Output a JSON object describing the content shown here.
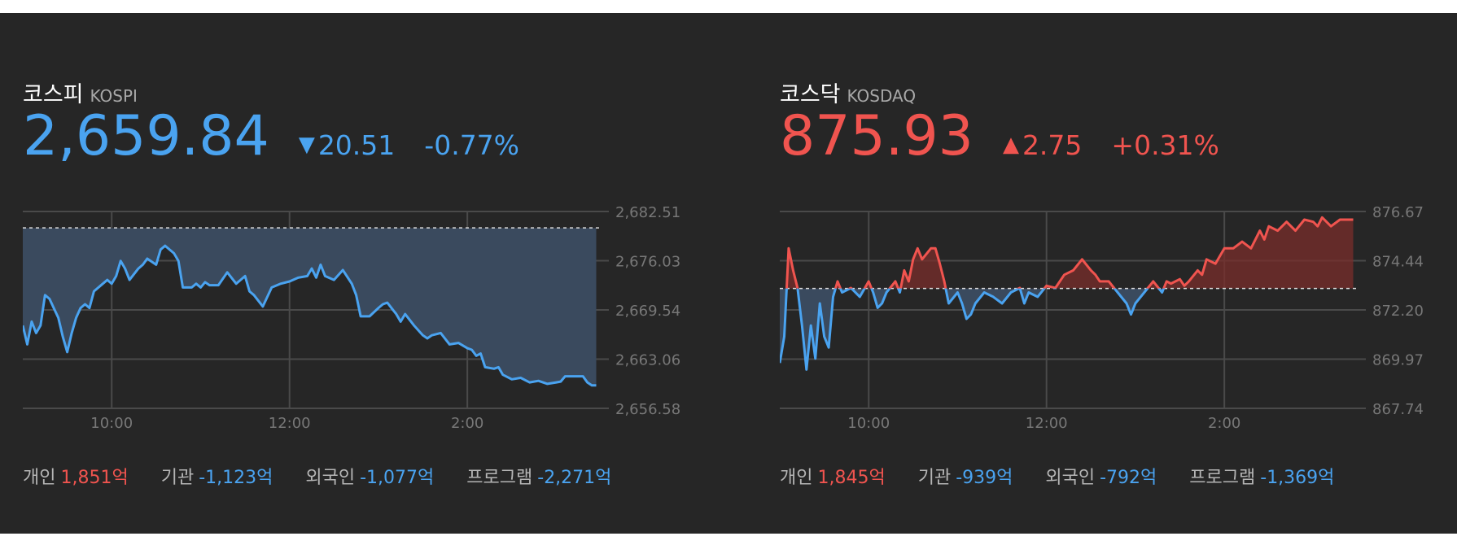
{
  "colors": {
    "up": "#f0544f",
    "down": "#4aa3f0",
    "background": "#262626",
    "grid": "#4a4a4a"
  },
  "markets": [
    {
      "name_ko": "코스피",
      "name_en": "KOSPI",
      "value": "2,659.84",
      "direction": "down",
      "arrow": "▼",
      "change": "20.51",
      "change_pct": "-0.77%",
      "flows": [
        {
          "label": "개인",
          "value": "1,851억",
          "dir": "up"
        },
        {
          "label": "기관",
          "value": "-1,123억",
          "dir": "down"
        },
        {
          "label": "외국인",
          "value": "-1,077억",
          "dir": "down"
        },
        {
          "label": "프로그램",
          "value": "-2,271억",
          "dir": "down"
        }
      ]
    },
    {
      "name_ko": "코스닥",
      "name_en": "KOSDAQ",
      "value": "875.93",
      "direction": "up",
      "arrow": "▲",
      "change": "2.75",
      "change_pct": "+0.31%",
      "flows": [
        {
          "label": "개인",
          "value": "1,845억",
          "dir": "up"
        },
        {
          "label": "기관",
          "value": "-939억",
          "dir": "down"
        },
        {
          "label": "외국인",
          "value": "-792억",
          "dir": "down"
        },
        {
          "label": "프로그램",
          "value": "-1,369억",
          "dir": "down"
        }
      ]
    }
  ],
  "chart_data": [
    {
      "type": "line",
      "ylim": [
        2656.58,
        2682.51
      ],
      "yticks": [
        "2,682.51",
        "2,676.03",
        "2,669.54",
        "2,663.06",
        "2,656.58"
      ],
      "xlim": [
        9.0,
        15.5
      ],
      "xticks": [
        {
          "x": 10,
          "label": "10:00"
        },
        {
          "x": 12,
          "label": "12:00"
        },
        {
          "x": 14,
          "label": "2:00"
        }
      ],
      "baseline": 2680.35,
      "grid": true,
      "series": [
        {
          "x": [
            9.0,
            9.05,
            9.1,
            9.15,
            9.2,
            9.25,
            9.3,
            9.4,
            9.45,
            9.5,
            9.55,
            9.6,
            9.65,
            9.7,
            9.75,
            9.8,
            9.9,
            9.95,
            10.0,
            10.05,
            10.1,
            10.15,
            10.2,
            10.3,
            10.35,
            10.4,
            10.5,
            10.55,
            10.6,
            10.7,
            10.75,
            10.8,
            10.9,
            10.95,
            11.0,
            11.05,
            11.1,
            11.2,
            11.3,
            11.4,
            11.5,
            11.55,
            11.6,
            11.7,
            11.8,
            11.9,
            12.0,
            12.1,
            12.2,
            12.25,
            12.3,
            12.35,
            12.4,
            12.5,
            12.6,
            12.7,
            12.75,
            12.8,
            12.9,
            13.0,
            13.05,
            13.1,
            13.2,
            13.25,
            13.3,
            13.4,
            13.5,
            13.55,
            13.6,
            13.7,
            13.8,
            13.9,
            14.0,
            14.05,
            14.1,
            14.15,
            14.2,
            14.3,
            14.35,
            14.4,
            14.5,
            14.6,
            14.7,
            14.8,
            14.9,
            15.0,
            15.05,
            15.1,
            15.2,
            15.3,
            15.35,
            15.4,
            15.45
          ],
          "values": [
            2667.5,
            2665.0,
            2668.0,
            2666.5,
            2667.5,
            2671.5,
            2671.0,
            2668.5,
            2666.0,
            2664.0,
            2666.5,
            2668.5,
            2669.8,
            2670.3,
            2669.8,
            2672.0,
            2673.0,
            2673.5,
            2673.0,
            2674.0,
            2676.0,
            2675.0,
            2673.5,
            2675.0,
            2675.5,
            2676.3,
            2675.5,
            2677.5,
            2678.0,
            2677.0,
            2676.0,
            2672.5,
            2672.5,
            2673.0,
            2672.5,
            2673.2,
            2672.8,
            2672.8,
            2674.5,
            2673.0,
            2674.0,
            2672.0,
            2671.5,
            2670.0,
            2672.5,
            2673.0,
            2673.3,
            2673.8,
            2674.0,
            2675.0,
            2673.8,
            2675.5,
            2674.0,
            2673.5,
            2674.8,
            2673.0,
            2671.5,
            2668.7,
            2668.7,
            2669.8,
            2670.3,
            2670.5,
            2669.0,
            2668.0,
            2669.0,
            2667.5,
            2666.2,
            2665.8,
            2666.2,
            2666.5,
            2665.0,
            2665.2,
            2664.5,
            2664.3,
            2663.5,
            2663.8,
            2662.0,
            2661.8,
            2662.0,
            2661.0,
            2660.4,
            2660.6,
            2660.0,
            2660.2,
            2659.8,
            2660.0,
            2660.1,
            2660.8,
            2660.8,
            2660.8,
            2660.0,
            2659.6,
            2659.6
          ]
        }
      ]
    },
    {
      "type": "line",
      "ylim": [
        867.74,
        876.67
      ],
      "yticks": [
        "876.67",
        "874.44",
        "872.20",
        "869.97",
        "867.74"
      ],
      "xlim": [
        9.0,
        15.5
      ],
      "xticks": [
        {
          "x": 10,
          "label": "10:00"
        },
        {
          "x": 12,
          "label": "12:00"
        },
        {
          "x": 14,
          "label": "2:00"
        }
      ],
      "baseline": 873.18,
      "grid": true,
      "series": [
        {
          "x": [
            9.0,
            9.05,
            9.1,
            9.15,
            9.2,
            9.25,
            9.3,
            9.35,
            9.4,
            9.45,
            9.5,
            9.55,
            9.6,
            9.65,
            9.7,
            9.8,
            9.9,
            10.0,
            10.05,
            10.1,
            10.15,
            10.2,
            10.3,
            10.35,
            10.4,
            10.45,
            10.5,
            10.55,
            10.6,
            10.7,
            10.75,
            10.8,
            10.85,
            10.9,
            11.0,
            11.05,
            11.1,
            11.15,
            11.2,
            11.3,
            11.4,
            11.5,
            11.6,
            11.7,
            11.75,
            11.8,
            11.9,
            12.0,
            12.1,
            12.2,
            12.3,
            12.4,
            12.5,
            12.55,
            12.6,
            12.7,
            12.8,
            12.9,
            12.95,
            13.0,
            13.1,
            13.2,
            13.3,
            13.35,
            13.4,
            13.5,
            13.55,
            13.6,
            13.7,
            13.75,
            13.8,
            13.9,
            14.0,
            14.1,
            14.2,
            14.3,
            14.4,
            14.45,
            14.5,
            14.6,
            14.7,
            14.8,
            14.9,
            15.0,
            15.05,
            15.1,
            15.2,
            15.3,
            15.4,
            15.45
          ],
          "values": [
            869.8,
            871.0,
            875.0,
            874.0,
            873.2,
            871.5,
            869.5,
            871.5,
            870.0,
            872.5,
            871.0,
            870.5,
            872.8,
            873.5,
            873.0,
            873.2,
            872.8,
            873.5,
            873.0,
            872.3,
            872.5,
            873.0,
            873.5,
            873.0,
            874.0,
            873.5,
            874.5,
            875.0,
            874.5,
            875.0,
            875.0,
            874.3,
            873.5,
            872.5,
            873.0,
            872.5,
            871.8,
            872.0,
            872.5,
            873.0,
            872.8,
            872.5,
            873.0,
            873.2,
            872.5,
            873.0,
            872.8,
            873.3,
            873.2,
            873.8,
            874.0,
            874.5,
            874.0,
            873.8,
            873.5,
            873.5,
            873.0,
            872.5,
            872.0,
            872.5,
            873.0,
            873.5,
            873.0,
            873.5,
            873.4,
            873.6,
            873.3,
            873.5,
            874.0,
            873.8,
            874.5,
            874.3,
            875.0,
            875.0,
            875.3,
            875.0,
            875.8,
            875.4,
            876.0,
            875.8,
            876.2,
            875.8,
            876.3,
            876.2,
            876.0,
            876.4,
            876.0,
            876.3,
            876.3,
            876.3
          ]
        }
      ]
    }
  ]
}
